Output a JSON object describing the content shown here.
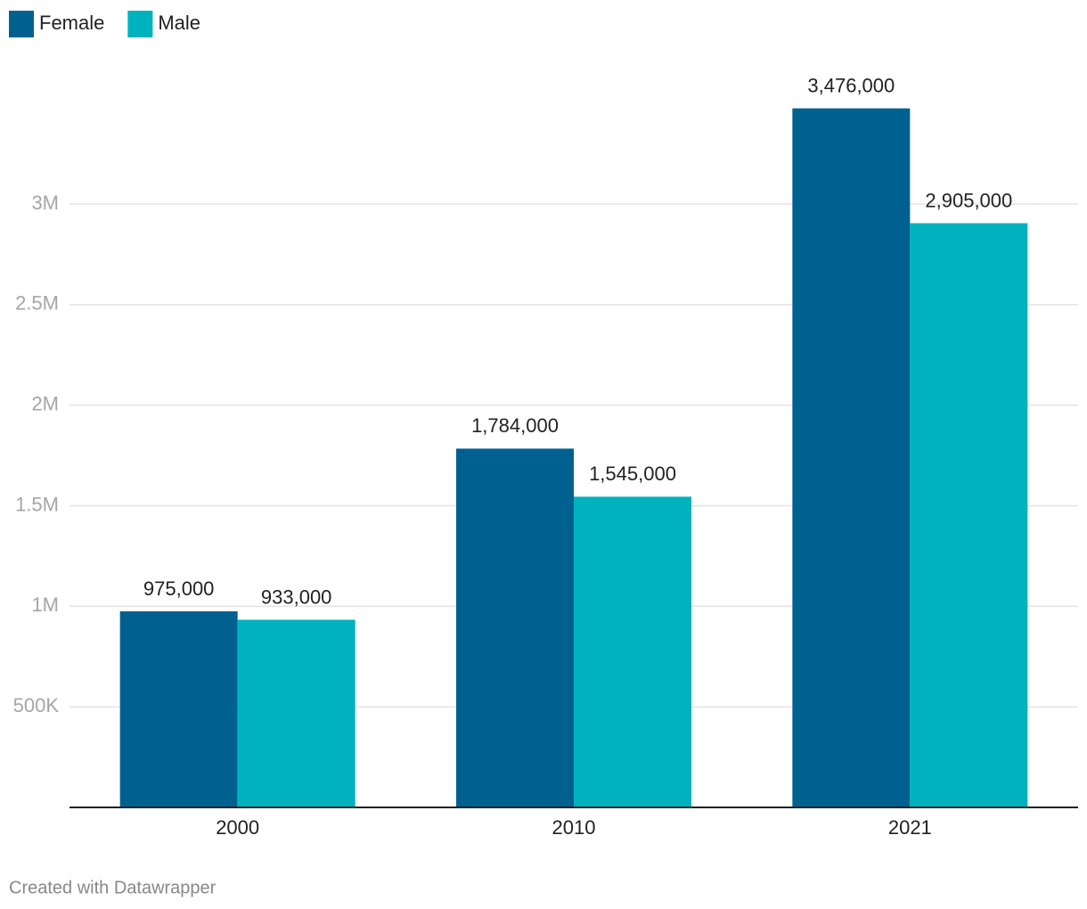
{
  "chart_data": {
    "type": "bar",
    "categories": [
      "2000",
      "2010",
      "2021"
    ],
    "series": [
      {
        "name": "Female",
        "color": "#006191",
        "values": [
          975000,
          1784000,
          3476000
        ],
        "value_labels": [
          "975,000",
          "1,784,000",
          "3,476,000"
        ]
      },
      {
        "name": "Male",
        "color": "#00b2bd",
        "values": [
          933000,
          1545000,
          2905000
        ],
        "value_labels": [
          "933,000",
          "1,545,000",
          "2,905,000"
        ]
      }
    ],
    "ylim": [
      0,
      3700000
    ],
    "yticks": [
      {
        "value": 500000,
        "label": "500K"
      },
      {
        "value": 1000000,
        "label": "1M"
      },
      {
        "value": 1500000,
        "label": "1.5M"
      },
      {
        "value": 2000000,
        "label": "2M"
      },
      {
        "value": 2500000,
        "label": "2.5M"
      },
      {
        "value": 3000000,
        "label": "3M"
      }
    ],
    "grid": true,
    "legend": "top-left",
    "footer": "Created with Datawrapper"
  }
}
